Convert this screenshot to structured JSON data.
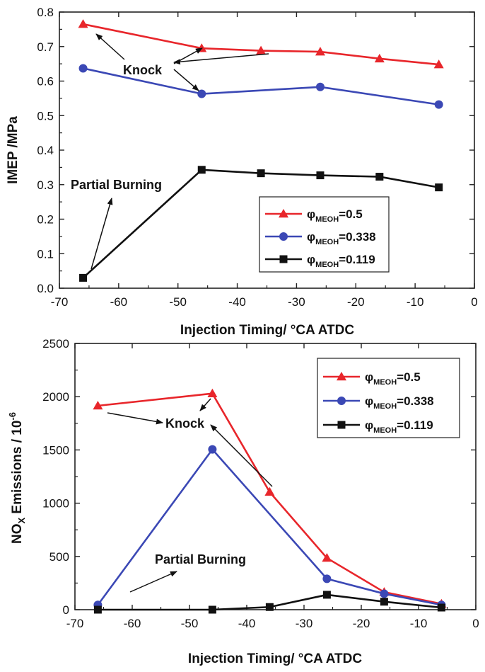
{
  "chart_data": [
    {
      "type": "line",
      "xlabel": "Injection Timing/ °CA ATDC",
      "ylabel": "IMEP /MPa",
      "xlim": [
        -70,
        0
      ],
      "ylim": [
        0.0,
        0.8
      ],
      "xticks": [
        "-70",
        "-60",
        "-50",
        "-40",
        "-30",
        "-20",
        "-10",
        "0"
      ],
      "yticks": [
        "0.0",
        "0.1",
        "0.2",
        "0.3",
        "0.4",
        "0.5",
        "0.6",
        "0.7",
        "0.8"
      ],
      "legend_position": "lower-right",
      "series": [
        {
          "name": "φMEOH=0.5",
          "symbol": "φ",
          "sub": "MEOH",
          "value_label": "=0.5",
          "color": "#e8262b",
          "marker": "triangle",
          "x": [
            -66,
            -46,
            -36,
            -26,
            -16,
            -6
          ],
          "values": [
            0.765,
            0.695,
            0.688,
            0.685,
            0.665,
            0.648
          ]
        },
        {
          "name": "φMEOH=0.338",
          "symbol": "φ",
          "sub": "MEOH",
          "value_label": "=0.338",
          "color": "#3b48b5",
          "marker": "circle",
          "x": [
            -66,
            -46,
            -26,
            -6
          ],
          "values": [
            0.637,
            0.563,
            0.583,
            0.532
          ]
        },
        {
          "name": "φMEOH=0.119",
          "symbol": "φ",
          "sub": "MEOH",
          "value_label": "=0.119",
          "color": "#111111",
          "marker": "square",
          "x": [
            -66,
            -46,
            -36,
            -26,
            -16,
            -6
          ],
          "values": [
            0.03,
            0.343,
            0.333,
            0.327,
            0.323,
            0.292
          ]
        }
      ],
      "annotations": [
        {
          "text": "Knock"
        },
        {
          "text": "Partial Burning"
        }
      ]
    },
    {
      "type": "line",
      "xlabel": "Injection Timing/ °CA ATDC",
      "ylabel": "NOX Emissions / 10-6",
      "ylabel_parts": {
        "main": "NO",
        "sub": "X",
        "rest": " Emissions / 10",
        "sup": "-6"
      },
      "xlim": [
        -70,
        0
      ],
      "ylim": [
        0,
        2500
      ],
      "xticks": [
        "-70",
        "-60",
        "-50",
        "-40",
        "-30",
        "-20",
        "-10",
        "0"
      ],
      "yticks": [
        "0",
        "500",
        "1000",
        "1500",
        "2000",
        "2500"
      ],
      "legend_position": "top-right",
      "series": [
        {
          "name": "φMEOH=0.5",
          "symbol": "φ",
          "sub": "MEOH",
          "value_label": "=0.5",
          "color": "#e8262b",
          "marker": "triangle",
          "x": [
            -66,
            -46,
            -36,
            -26,
            -16,
            -6
          ],
          "values": [
            1915,
            2030,
            1105,
            485,
            165,
            55
          ]
        },
        {
          "name": "φMEOH=0.338",
          "symbol": "φ",
          "sub": "MEOH",
          "value_label": "=0.338",
          "color": "#3b48b5",
          "marker": "circle",
          "x": [
            -66,
            -46,
            -26,
            -16,
            -6
          ],
          "values": [
            45,
            1505,
            290,
            150,
            45
          ]
        },
        {
          "name": "φMEOH=0.119",
          "symbol": "φ",
          "sub": "MEOH",
          "value_label": "=0.119",
          "color": "#111111",
          "marker": "square",
          "x": [
            -66,
            -46,
            -36,
            -26,
            -16,
            -6
          ],
          "values": [
            0,
            0,
            25,
            140,
            75,
            20
          ]
        }
      ],
      "annotations": [
        {
          "text": "Knock"
        },
        {
          "text": "Partial Burning"
        }
      ]
    }
  ]
}
